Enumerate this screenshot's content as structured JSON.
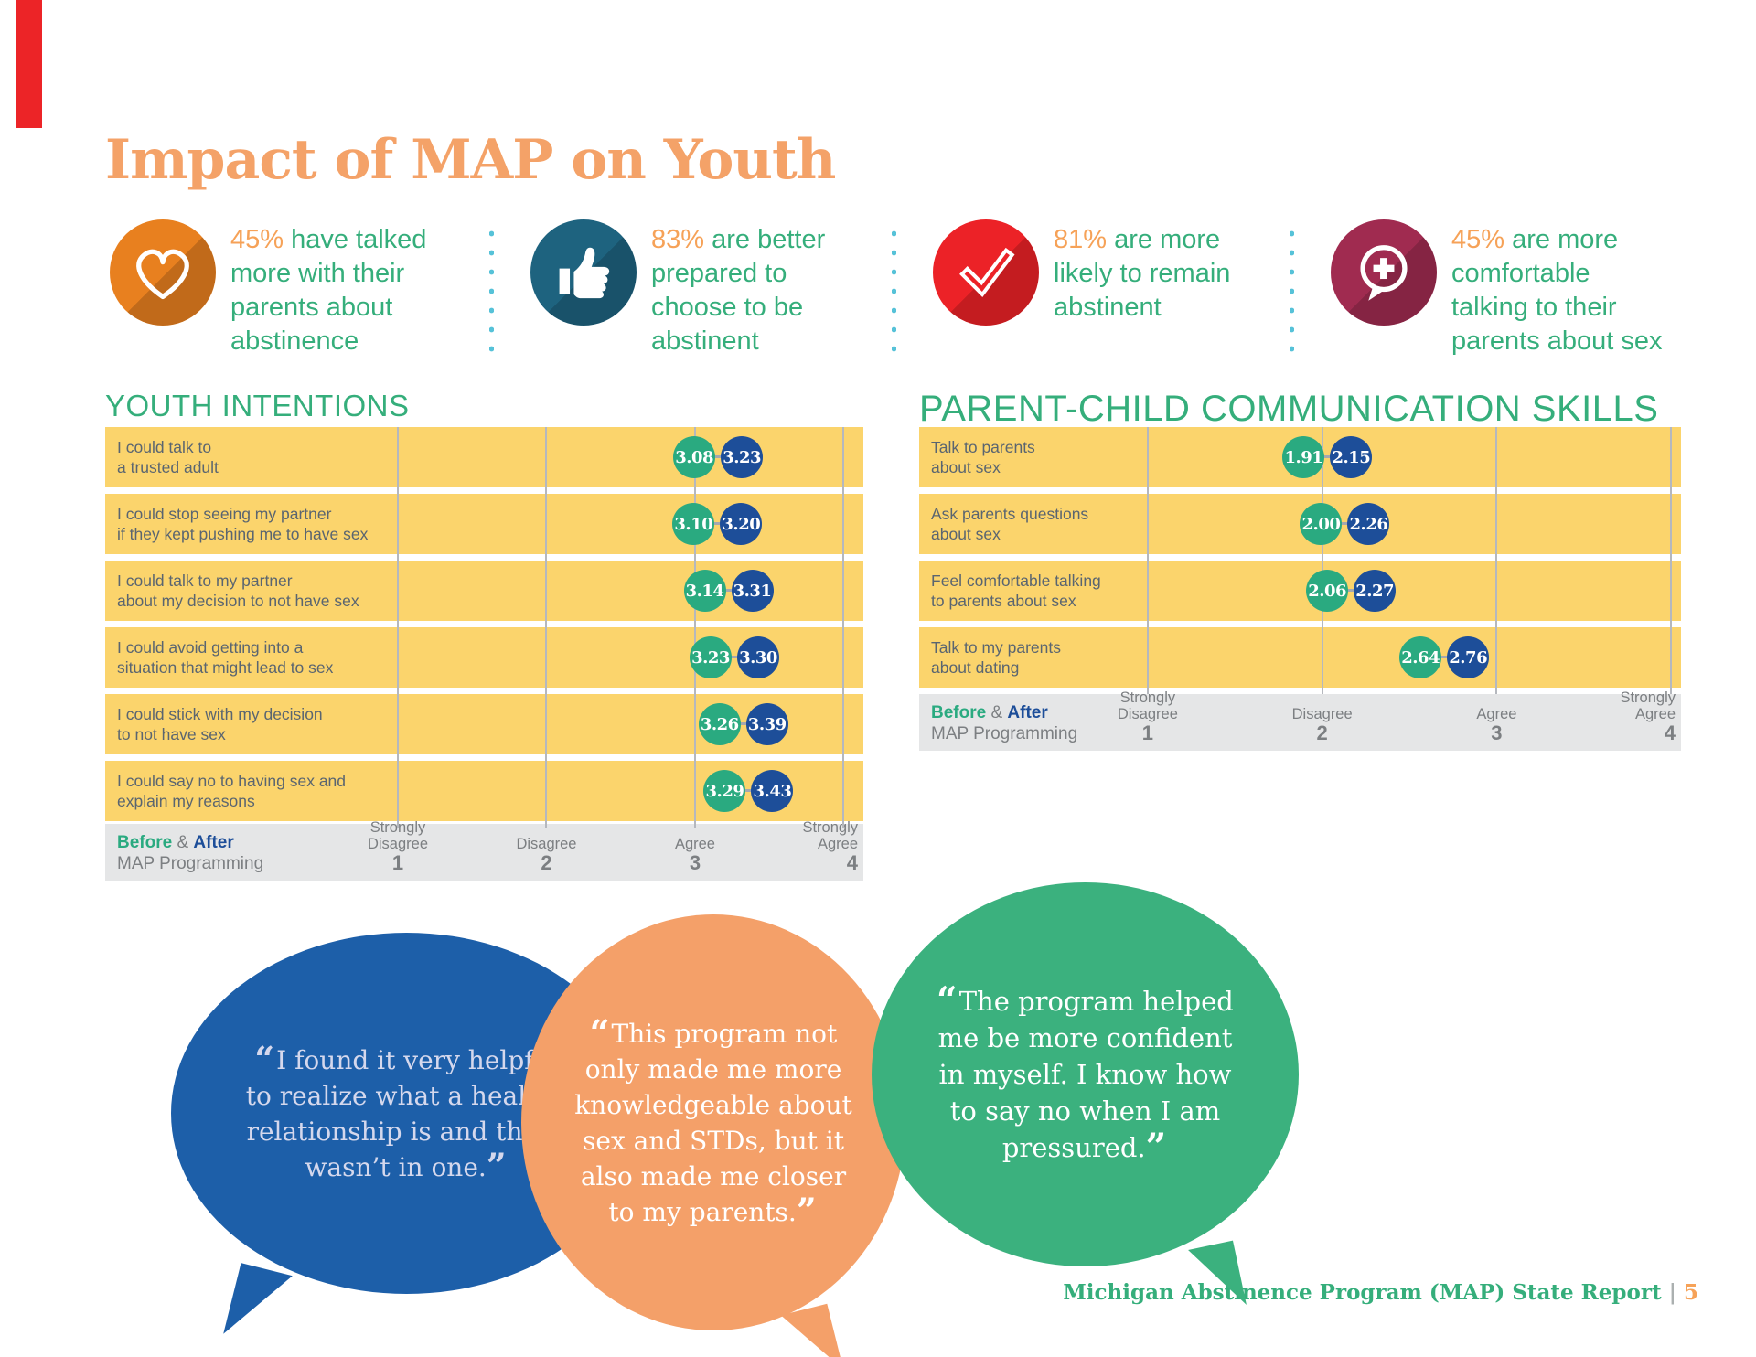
{
  "page_title": "Impact of MAP on Youth",
  "colors": {
    "title_orange": "#F4A268",
    "accent_orange": "#F6A258",
    "green_text": "#35AE7B",
    "yellow_row": "#FBD46C",
    "gridline": "#B5B8BE",
    "connector": "#A5A8AE",
    "label_slate": "#5A6570",
    "dot_before_green": "#2AAA80",
    "dot_after_blue": "#1D4E99",
    "axis_bg": "#E5E6E7",
    "axis_text": "#7C7F82",
    "separator_dots_teal": "#56C2D8",
    "footer_separator_gray": "#ABB0B0",
    "corner_mark_red": "#EC2427"
  },
  "quote_marks": {
    "open": "“",
    "close": "”"
  },
  "stats": [
    {
      "pct": "45%",
      "lines": [
        "have talked",
        "more with their",
        "parents about",
        "abstinence"
      ],
      "icon": "heart-icon",
      "circle_color": "#E8801F"
    },
    {
      "pct": "83%",
      "lines": [
        "are better",
        "prepared to",
        "choose to be",
        "abstinent"
      ],
      "icon": "thumbs-up-icon",
      "circle_color": "#1E637F"
    },
    {
      "pct": "81%",
      "lines": [
        "are more",
        "likely to remain",
        "abstinent"
      ],
      "icon": "checkmark-icon",
      "circle_color": "#EC2227"
    },
    {
      "pct": "45%",
      "lines": [
        "are more",
        "comfortable",
        "talking to their",
        "parents about sex"
      ],
      "icon": "speech-bubble-plus-icon",
      "circle_color": "#A02B50"
    }
  ],
  "charts": [
    {
      "title": "YOUTH INTENTIONS",
      "legend": {
        "before": "Before",
        "amp": " & ",
        "after": "After",
        "line2": "MAP Programming"
      },
      "ticks": [
        {
          "lines": [
            "Strongly",
            "Disagree"
          ],
          "num": "1"
        },
        {
          "lines": [
            "Disagree"
          ],
          "num": "2"
        },
        {
          "lines": [
            "Agree"
          ],
          "num": "3"
        },
        {
          "lines": [
            "Strongly",
            "Agree"
          ],
          "num": "4"
        }
      ],
      "scale": {
        "pct_at_1": 38.6,
        "pct_step": 19.6
      },
      "rows": [
        {
          "label_lines": [
            "I could talk to",
            "a trusted adult"
          ],
          "before": "3.08",
          "after": "3.23"
        },
        {
          "label_lines": [
            "I could stop seeing my partner",
            "if they kept pushing me to have sex"
          ],
          "before": "3.10",
          "after": "3.20"
        },
        {
          "label_lines": [
            "I could talk to my partner",
            "about my decision to not have sex"
          ],
          "before": "3.14",
          "after": "3.31"
        },
        {
          "label_lines": [
            "I could avoid getting into a",
            "situation that might lead to sex"
          ],
          "before": "3.23",
          "after": "3.30"
        },
        {
          "label_lines": [
            "I could stick with my decision",
            "to not have sex"
          ],
          "before": "3.26",
          "after": "3.39"
        },
        {
          "label_lines": [
            "I could say no to having sex and",
            "explain my reasons"
          ],
          "before": "3.29",
          "after": "3.43"
        }
      ]
    },
    {
      "title": "PARENT-CHILD COMMUNICATION SKILLS",
      "legend": {
        "before": "Before",
        "amp": " & ",
        "after": "After",
        "line2": "MAP Programming"
      },
      "ticks": [
        {
          "lines": [
            "Strongly",
            "Disagree"
          ],
          "num": "1"
        },
        {
          "lines": [
            "Disagree"
          ],
          "num": "2"
        },
        {
          "lines": [
            "Agree"
          ],
          "num": "3"
        },
        {
          "lines": [
            "Strongly",
            "Agree"
          ],
          "num": "4"
        }
      ],
      "scale": {
        "pct_at_1": 30.0,
        "pct_step": 22.9
      },
      "rows": [
        {
          "label_lines": [
            "Talk to parents",
            "about sex"
          ],
          "before": "1.91",
          "after": "2.15"
        },
        {
          "label_lines": [
            "Ask parents questions",
            "about sex"
          ],
          "before": "2.00",
          "after": "2.26"
        },
        {
          "label_lines": [
            "Feel comfortable talking",
            "to parents about sex"
          ],
          "before": "2.06",
          "after": "2.27"
        },
        {
          "label_lines": [
            "Talk to my parents",
            "about dating"
          ],
          "before": "2.64",
          "after": "2.76"
        }
      ]
    }
  ],
  "quotes": [
    {
      "text": "I found it very helpful to realize what a healthy relationship is and that I wasn’t in one.",
      "bubble_color": "#1D5FA9",
      "text_color": "#D5D8ED"
    },
    {
      "text": "This program not only made me more knowledgeable about sex and STDs, but it also made me closer to my parents.",
      "bubble_color": "#F4A069",
      "text_color": "#FFFFFF"
    },
    {
      "text": "The program helped me be more confident in myself. I know how to say no when I am pressured.",
      "bubble_color": "#3BB17E",
      "text_color": "#FFFFFF"
    }
  ],
  "footer": {
    "text": "Michigan Abstinence Program (MAP) State Report",
    "separator": "|",
    "page": "5"
  },
  "chart_data": [
    {
      "type": "dumbbell",
      "title": "YOUTH INTENTIONS",
      "categories": [
        "I could talk to a trusted adult",
        "I could stop seeing my partner if they kept pushing me to have sex",
        "I could talk to my partner about my decision to not have sex",
        "I could avoid getting into a situation that might lead to sex",
        "I could stick with my decision to not have sex",
        "I could say no to having sex and explain my reasons"
      ],
      "series": [
        {
          "name": "Before MAP Programming",
          "values": [
            3.08,
            3.1,
            3.14,
            3.23,
            3.26,
            3.29
          ]
        },
        {
          "name": "After MAP Programming",
          "values": [
            3.23,
            3.2,
            3.31,
            3.3,
            3.39,
            3.43
          ]
        }
      ],
      "xlim": [
        1,
        4
      ],
      "x_tick_labels": [
        "Strongly Disagree 1",
        "Disagree 2",
        "Agree 3",
        "Strongly Agree 4"
      ],
      "legend_position": "bottom-left"
    },
    {
      "type": "dumbbell",
      "title": "PARENT-CHILD COMMUNICATION SKILLS",
      "categories": [
        "Talk to parents about sex",
        "Ask parents questions about sex",
        "Feel comfortable talking to parents about sex",
        "Talk to my parents about dating"
      ],
      "series": [
        {
          "name": "Before MAP Programming",
          "values": [
            1.91,
            2.0,
            2.06,
            2.64
          ]
        },
        {
          "name": "After MAP Programming",
          "values": [
            2.15,
            2.26,
            2.27,
            2.76
          ]
        }
      ],
      "xlim": [
        1,
        4
      ],
      "x_tick_labels": [
        "Strongly Disagree 1",
        "Disagree 2",
        "Agree 3",
        "Strongly Agree 4"
      ],
      "legend_position": "bottom-left"
    }
  ]
}
